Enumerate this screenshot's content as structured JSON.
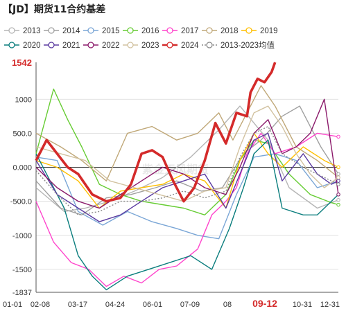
{
  "chart_data": {
    "type": "line",
    "title": "【JD】期货11合约基差",
    "xlabel": "",
    "ylabel": "",
    "ylim": [
      -1837,
      1542
    ],
    "yticks": [
      {
        "value": 1542,
        "label": "1542",
        "highlight": true
      },
      {
        "value": 1000,
        "label": "1000"
      },
      {
        "value": 500,
        "label": "500.0"
      },
      {
        "value": 0,
        "label": "0.000"
      },
      {
        "value": -500,
        "label": "-500.0"
      },
      {
        "value": -1000,
        "label": "-1000"
      },
      {
        "value": -1500,
        "label": "-1500"
      },
      {
        "value": -1837,
        "label": "-1837"
      }
    ],
    "xticks": [
      "01-01",
      "02-08",
      "03-17",
      "04-24",
      "06-01",
      "07-09",
      "08",
      "09-12",
      "10-31",
      "12-31"
    ],
    "highlight_xtick": "09-12",
    "grid": true,
    "legend_position": "top",
    "watermark": "紫金天风期货",
    "series": [
      {
        "name": "2013",
        "color": "#b5b5b5",
        "x": [
          0,
          8,
          14,
          21,
          28,
          36,
          44,
          52,
          58,
          66,
          72,
          80,
          86
        ],
        "y": [
          -300,
          -650,
          -600,
          -500,
          -350,
          -150,
          150,
          550,
          900,
          400,
          -300,
          -600,
          -480
        ]
      },
      {
        "name": "2014",
        "color": "#a0a0a0",
        "x": [
          0,
          7,
          13,
          20,
          27,
          34,
          40,
          47,
          53,
          59,
          64,
          70,
          75,
          81,
          86
        ],
        "y": [
          -200,
          -600,
          -700,
          -450,
          -400,
          -300,
          -200,
          -350,
          -300,
          200,
          400,
          750,
          900,
          300,
          -100
        ]
      },
      {
        "name": "2015",
        "color": "#7aa6d6",
        "x": [
          0,
          6,
          12,
          19,
          26,
          33,
          40,
          46,
          52,
          57,
          62,
          68,
          74,
          80,
          86
        ],
        "y": [
          150,
          100,
          -650,
          -850,
          -650,
          -800,
          -900,
          -1000,
          -1050,
          -400,
          150,
          200,
          100,
          -300,
          -200
        ]
      },
      {
        "name": "2016",
        "color": "#66cc33",
        "x": [
          0,
          5,
          9,
          13,
          18,
          24,
          30,
          36,
          42,
          48,
          54,
          58,
          62,
          66,
          72,
          78,
          84,
          86
        ],
        "y": [
          200,
          1150,
          700,
          300,
          -250,
          -400,
          -500,
          -550,
          -600,
          -700,
          -400,
          100,
          400,
          350,
          -100,
          -400,
          -520,
          -550
        ]
      },
      {
        "name": "2017",
        "color": "#ff44cc",
        "x": [
          0,
          5,
          10,
          15,
          20,
          25,
          30,
          35,
          40,
          46,
          50,
          54,
          57,
          60,
          64,
          68,
          74,
          80,
          86
        ],
        "y": [
          -500,
          -1100,
          -1400,
          -1500,
          -1750,
          -1600,
          -1700,
          -1500,
          -1450,
          -1200,
          -700,
          -500,
          -300,
          200,
          500,
          200,
          300,
          500,
          450
        ]
      },
      {
        "name": "2018",
        "color": "#c0a878",
        "x": [
          0,
          7,
          13,
          20,
          26,
          33,
          40,
          46,
          52,
          56,
          60,
          64,
          68,
          74,
          80,
          86
        ],
        "y": [
          500,
          300,
          100,
          -200,
          500,
          600,
          400,
          500,
          800,
          400,
          800,
          1200,
          900,
          300,
          100,
          -150
        ]
      },
      {
        "name": "2019",
        "color": "#ffbf00",
        "x": [
          0,
          6,
          12,
          18,
          24,
          30,
          36,
          42,
          48,
          54,
          58,
          62,
          66,
          70,
          76,
          82,
          86
        ],
        "y": [
          100,
          0,
          -200,
          -600,
          -350,
          -300,
          -250,
          -100,
          -200,
          -600,
          100,
          500,
          200,
          0,
          300,
          100,
          0
        ]
      },
      {
        "name": "2020",
        "color": "#0a7d7d",
        "x": [
          0,
          8,
          12,
          16,
          20,
          26,
          32,
          38,
          44,
          50,
          55,
          59,
          62,
          66,
          70,
          76,
          80,
          84,
          86
        ],
        "y": [
          200,
          -600,
          -1300,
          -1600,
          -1800,
          -1600,
          -1500,
          -1400,
          -1300,
          -1500,
          -900,
          -300,
          200,
          400,
          -600,
          -700,
          -700,
          -500,
          -400
        ]
      },
      {
        "name": "2021",
        "color": "#5a3aa0",
        "x": [
          0,
          6,
          12,
          18,
          24,
          30,
          36,
          42,
          48,
          54,
          58,
          62,
          66,
          70,
          76,
          80,
          84,
          86
        ],
        "y": [
          100,
          -400,
          -600,
          -800,
          -700,
          -500,
          -300,
          -200,
          -100,
          -600,
          -100,
          400,
          500,
          -200,
          200,
          -100,
          -250,
          -200
        ]
      },
      {
        "name": "2022",
        "color": "#8b1a6b",
        "x": [
          0,
          6,
          12,
          18,
          24,
          30,
          36,
          42,
          48,
          54,
          58,
          62,
          66,
          70,
          74,
          78,
          82,
          86
        ],
        "y": [
          0,
          -300,
          -500,
          -600,
          -400,
          -200,
          0,
          -100,
          -300,
          -400,
          0,
          500,
          700,
          200,
          300,
          500,
          1000,
          -400
        ]
      },
      {
        "name": "2023",
        "color": "#d2c2a0",
        "x": [
          0,
          7,
          14,
          21,
          28,
          35,
          42,
          48,
          54,
          58,
          62,
          66,
          70,
          74,
          78,
          82,
          86
        ],
        "y": [
          300,
          200,
          100,
          -200,
          -300,
          -400,
          -500,
          -350,
          -300,
          300,
          800,
          900,
          600,
          200,
          -100,
          -300,
          -150
        ]
      },
      {
        "name": "2024",
        "color": "#d42a2a",
        "bold": true,
        "x": [
          0,
          3,
          6,
          9,
          12,
          16,
          20,
          24,
          27,
          30,
          33,
          36,
          39,
          42,
          45,
          48,
          51,
          54,
          57,
          60,
          61,
          63,
          65,
          67,
          68
        ],
        "y": [
          100,
          400,
          200,
          0,
          -100,
          -400,
          -500,
          -450,
          -250,
          200,
          250,
          150,
          -200,
          -500,
          -300,
          100,
          650,
          350,
          800,
          750,
          1100,
          1300,
          1250,
          1400,
          1542
        ]
      },
      {
        "name": "2013-2023均值",
        "color": "#8a8a8a",
        "dashed": true,
        "x": [
          0,
          6,
          12,
          18,
          24,
          30,
          36,
          42,
          48,
          54,
          58,
          62,
          66,
          70,
          76,
          82,
          86
        ],
        "y": [
          -50,
          -400,
          -700,
          -650,
          -500,
          -500,
          -450,
          -350,
          -450,
          -350,
          150,
          500,
          600,
          200,
          0,
          -150,
          -250
        ]
      }
    ]
  }
}
